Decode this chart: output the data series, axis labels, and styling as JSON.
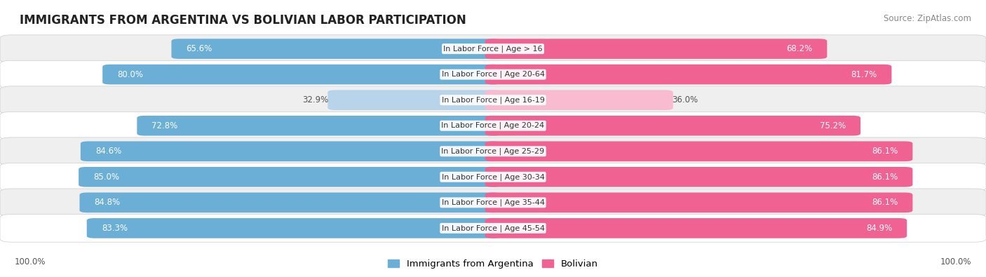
{
  "title": "IMMIGRANTS FROM ARGENTINA VS BOLIVIAN LABOR PARTICIPATION",
  "source": "Source: ZipAtlas.com",
  "categories": [
    "In Labor Force | Age > 16",
    "In Labor Force | Age 20-64",
    "In Labor Force | Age 16-19",
    "In Labor Force | Age 20-24",
    "In Labor Force | Age 25-29",
    "In Labor Force | Age 30-34",
    "In Labor Force | Age 35-44",
    "In Labor Force | Age 45-54"
  ],
  "argentina_values": [
    65.6,
    80.0,
    32.9,
    72.8,
    84.6,
    85.0,
    84.8,
    83.3
  ],
  "bolivian_values": [
    68.2,
    81.7,
    36.0,
    75.2,
    86.1,
    86.1,
    86.1,
    84.9
  ],
  "argentina_color": "#6baed6",
  "argentina_color_light": "#b8d4ea",
  "bolivian_color": "#f06292",
  "bolivian_color_light": "#f8bbd0",
  "row_bg_odd": "#efefef",
  "row_bg_even": "#ffffff",
  "pill_bg": "#e8e8ee",
  "title_fontsize": 12,
  "source_fontsize": 8.5,
  "legend_fontsize": 9.5,
  "bar_value_fontsize": 8.5,
  "category_fontsize": 8.0,
  "max_value": 100.0,
  "legend_argentina": "Immigrants from Argentina",
  "legend_bolivian": "Bolivian",
  "low_threshold": 50
}
